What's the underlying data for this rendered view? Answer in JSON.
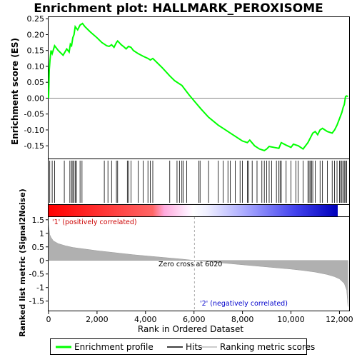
{
  "chart_data": {
    "type": "line",
    "title": "Enrichment plot: HALLMARK_PEROXISOME",
    "top_panel": {
      "ylabel": "Enrichment score (ES)",
      "ylim": [
        -0.19,
        0.255
      ],
      "yticks": [
        0.25,
        0.2,
        0.15,
        0.1,
        0.05,
        0.0,
        -0.05,
        -0.1,
        -0.15
      ],
      "ytick_labels": [
        "0.25",
        "0.20",
        "0.15",
        "0.10",
        "0.05",
        "0.00",
        "-0.05",
        "-0.10",
        "-0.15"
      ],
      "series": [
        {
          "name": "Enrichment profile",
          "color": "#00ff00",
          "x": [
            0,
            30,
            60,
            100,
            150,
            250,
            400,
            600,
            750,
            850,
            900,
            950,
            1000,
            1050,
            1100,
            1200,
            1300,
            1400,
            1500,
            1700,
            2000,
            2200,
            2300,
            2400,
            2500,
            2600,
            2700,
            2800,
            2850,
            3000,
            3100,
            3200,
            3300,
            3400,
            3500,
            3700,
            3900,
            4100,
            4200,
            4300,
            4500,
            4700,
            5000,
            5200,
            5500,
            5800,
            6020,
            6300,
            6600,
            7000,
            7300,
            7500,
            7800,
            8000,
            8200,
            8300,
            8500,
            8700,
            8900,
            9000,
            9100,
            9300,
            9500,
            9600,
            9800,
            10000,
            10100,
            10300,
            10500,
            10700,
            10800,
            10900,
            11000,
            11100,
            11200,
            11300,
            11500,
            11700,
            11800,
            11900,
            12000,
            12100,
            12150,
            12200,
            12250,
            12300,
            12350
          ],
          "y": [
            0.0,
            0.09,
            0.12,
            0.15,
            0.14,
            0.165,
            0.15,
            0.135,
            0.155,
            0.145,
            0.17,
            0.165,
            0.19,
            0.2,
            0.225,
            0.215,
            0.23,
            0.235,
            0.225,
            0.21,
            0.19,
            0.175,
            0.17,
            0.165,
            0.163,
            0.168,
            0.16,
            0.175,
            0.18,
            0.168,
            0.162,
            0.155,
            0.163,
            0.16,
            0.15,
            0.14,
            0.132,
            0.125,
            0.12,
            0.125,
            0.11,
            0.095,
            0.07,
            0.055,
            0.04,
            0.01,
            -0.01,
            -0.035,
            -0.06,
            -0.085,
            -0.1,
            -0.11,
            -0.125,
            -0.135,
            -0.14,
            -0.132,
            -0.15,
            -0.16,
            -0.165,
            -0.16,
            -0.152,
            -0.155,
            -0.158,
            -0.14,
            -0.148,
            -0.155,
            -0.145,
            -0.15,
            -0.16,
            -0.14,
            -0.125,
            -0.11,
            -0.105,
            -0.115,
            -0.1,
            -0.095,
            -0.105,
            -0.11,
            -0.1,
            -0.085,
            -0.065,
            -0.045,
            -0.03,
            -0.02,
            0.005,
            0.007,
            0.005
          ]
        }
      ]
    },
    "hits_panel": {
      "series_name": "Hits",
      "color": "#000000",
      "x": [
        50,
        150,
        250,
        650,
        880,
        950,
        1000,
        1050,
        1100,
        1150,
        1300,
        1380,
        2300,
        2450,
        2600,
        2800,
        2850,
        3250,
        3300,
        3400,
        3700,
        3900,
        4100,
        4200,
        4300,
        5000,
        5300,
        5400,
        5500,
        5550,
        5700,
        6200,
        6250,
        6600,
        7000,
        7200,
        7400,
        7500,
        7700,
        7900,
        8000,
        8200,
        8250,
        8400,
        8600,
        8800,
        8900,
        9000,
        9100,
        9200,
        9400,
        9500,
        9550,
        9600,
        9800,
        10000,
        10200,
        10300,
        10500,
        10700,
        10750,
        10800,
        10850,
        10900,
        11000,
        11200,
        11300,
        11500,
        11700,
        11800,
        11900,
        12000,
        12050,
        12100,
        12150,
        12200,
        12250,
        12300
      ]
    },
    "ranking_bar": {
      "colors": [
        "#ff0000",
        "#ff99cc",
        "#ffffff",
        "#9999ff",
        "#0000cc"
      ]
    },
    "bottom_panel": {
      "ylabel": "Ranked list metric (Signal2Noise)",
      "ylim": [
        -1.85,
        1.6
      ],
      "yticks": [
        1.5,
        1.0,
        0.5,
        0.0,
        -0.5,
        -1.0,
        -1.5
      ],
      "ytick_labels": [
        "1.5",
        "1",
        "0.5",
        "0",
        "-0.5",
        "-1",
        "-1.5"
      ],
      "series_name": "Ranking metric scores",
      "x": [
        0,
        50,
        100,
        200,
        400,
        700,
        1000,
        1500,
        2000,
        2500,
        3000,
        3500,
        4000,
        4500,
        5000,
        5500,
        6020,
        6500,
        7000,
        7500,
        8000,
        8500,
        9000,
        9500,
        10000,
        10500,
        11000,
        11500,
        11800,
        12000,
        12200,
        12300,
        12350
      ],
      "y": [
        1.35,
        0.95,
        0.85,
        0.72,
        0.62,
        0.54,
        0.48,
        0.42,
        0.36,
        0.31,
        0.26,
        0.21,
        0.17,
        0.13,
        0.09,
        0.05,
        0.0,
        -0.04,
        -0.08,
        -0.12,
        -0.16,
        -0.2,
        -0.24,
        -0.28,
        -0.32,
        -0.37,
        -0.43,
        -0.52,
        -0.6,
        -0.68,
        -0.85,
        -1.1,
        -1.7
      ],
      "annotations": [
        "'1' (positively correlated)",
        "Zero cross at 6020",
        "'2' (negatively correlated)"
      ],
      "zero_cross": 6020
    },
    "xlabel": "Rank in Ordered Dataset",
    "xlim": [
      0,
      12400
    ],
    "xticks": [
      0,
      2000,
      4000,
      6000,
      8000,
      10000,
      12000
    ],
    "xtick_labels": [
      "0",
      "2,000",
      "4,000",
      "6,000",
      "8,000",
      "10,000",
      "12,000"
    ],
    "legend": {
      "placement": "bottom",
      "items": [
        {
          "label": "Enrichment profile",
          "color": "#00ff00"
        },
        {
          "label": "Hits",
          "color": "#000000"
        },
        {
          "label": "Ranking metric scores",
          "color": "#bbbbbb"
        }
      ]
    }
  }
}
